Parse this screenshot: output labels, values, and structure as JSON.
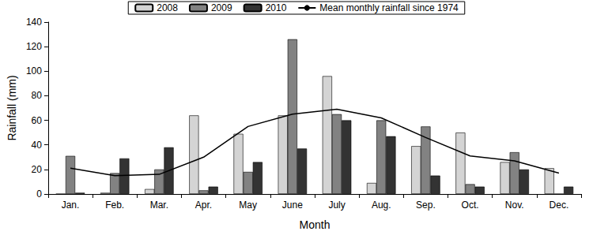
{
  "chart_data": {
    "type": "bar",
    "x_label": "Month",
    "y_label": "Rainfall (mm)",
    "categories": [
      "Jan.",
      "Feb.",
      "Mar.",
      "Apr.",
      "May",
      "June",
      "July",
      "Aug.",
      "Sep.",
      "Oct.",
      "Nov.",
      "Dec."
    ],
    "series": [
      {
        "name": "2008",
        "type": "bar",
        "color": "#d4d4d4",
        "values": [
          0,
          1,
          4,
          64,
          49,
          64,
          96,
          9,
          39,
          50,
          26,
          21
        ]
      },
      {
        "name": "2009",
        "type": "bar",
        "color": "#828282",
        "values": [
          31,
          17,
          20,
          3,
          18,
          126,
          65,
          60,
          55,
          8,
          34,
          0
        ]
      },
      {
        "name": "2010",
        "type": "bar",
        "color": "#333333",
        "values": [
          1,
          29,
          38,
          6,
          26,
          37,
          60,
          47,
          15,
          6,
          20,
          6
        ]
      },
      {
        "name": "Mean monthly rainfall since 1974",
        "type": "line",
        "color": "#000000",
        "marker": "none",
        "line_style": "solid",
        "values": [
          21,
          15,
          16,
          30,
          55,
          65,
          69,
          62,
          46,
          31,
          27,
          17
        ]
      }
    ],
    "ylim": [
      0,
      140
    ],
    "yticks": [
      0,
      20,
      40,
      60,
      80,
      100,
      120,
      140
    ],
    "grid": false,
    "legend": "top"
  }
}
